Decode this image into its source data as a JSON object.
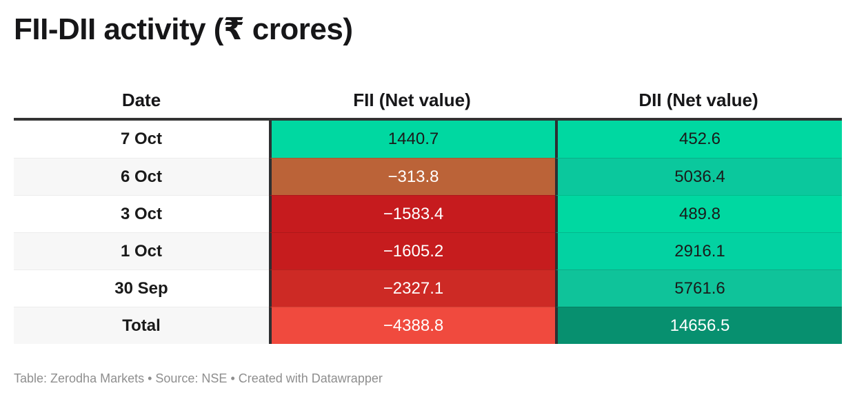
{
  "title": "FII-DII activity (₹ crores)",
  "footer": "Table: Zerodha Markets • Source: NSE • Created with Datawrapper",
  "colors": {
    "header_rule": "#333333",
    "column_separator": "#2e2f31",
    "row_stripe": "#f7f7f7",
    "positive_green": "#00d8a1",
    "negative_red": "#c61b1e",
    "total_green_dark": "#07906f",
    "total_red_light": "#f04a3e",
    "footer_text": "#8e8e8e"
  },
  "table": {
    "columns": [
      "Date",
      "FII (Net value)",
      "DII (Net value)"
    ],
    "rows": [
      {
        "date": "7 Oct",
        "date_bg": "#ffffff",
        "fii": "1440.7",
        "fii_bg": "#00d8a1",
        "fii_fg": "#1a1a1a",
        "dii": "452.6",
        "dii_bg": "#00d8a1",
        "dii_fg": "#1a1a1a"
      },
      {
        "date": "6 Oct",
        "date_bg": "#f7f7f7",
        "fii": "−313.8",
        "fii_bg": "#bb6338",
        "fii_fg": "#ffffff",
        "dii": "5036.4",
        "dii_bg": "#0bc89d",
        "dii_fg": "#1a1a1a"
      },
      {
        "date": "3 Oct",
        "date_bg": "#ffffff",
        "fii": "−1583.4",
        "fii_bg": "#c61b1e",
        "fii_fg": "#ffffff",
        "dii": "489.8",
        "dii_bg": "#00d8a1",
        "dii_fg": "#1a1a1a"
      },
      {
        "date": "1 Oct",
        "date_bg": "#f7f7f7",
        "fii": "−1605.2",
        "fii_bg": "#c61c1e",
        "fii_fg": "#ffffff",
        "dii": "2916.1",
        "dii_bg": "#03d2a2",
        "dii_fg": "#1a1a1a"
      },
      {
        "date": "30 Sep",
        "date_bg": "#ffffff",
        "fii": "−2327.1",
        "fii_bg": "#cd2a25",
        "fii_fg": "#ffffff",
        "dii": "5761.6",
        "dii_bg": "#0fc39a",
        "dii_fg": "#1a1a1a"
      },
      {
        "date": "Total",
        "date_bg": "#f7f7f7",
        "fii": "−4388.8",
        "fii_bg": "#f04a3e",
        "fii_fg": "#ffffff",
        "dii": "14656.5",
        "dii_bg": "#07906f",
        "dii_fg": "#ffffff"
      }
    ]
  },
  "chart_data": {
    "type": "table",
    "title": "FII-DII activity (₹ crores)",
    "columns": [
      "Date",
      "FII (Net value)",
      "DII (Net value)"
    ],
    "rows": [
      [
        "7 Oct",
        1440.7,
        452.6
      ],
      [
        "6 Oct",
        -313.8,
        5036.4
      ],
      [
        "3 Oct",
        -1583.4,
        489.8
      ],
      [
        "1 Oct",
        -1605.2,
        2916.1
      ],
      [
        "30 Sep",
        -2327.1,
        5761.6
      ],
      [
        "Total",
        -4388.8,
        14656.5
      ]
    ],
    "cell_color_encoding": "green = positive net value, red/brown = negative net value, darker saturated = larger magnitude in column scale"
  }
}
